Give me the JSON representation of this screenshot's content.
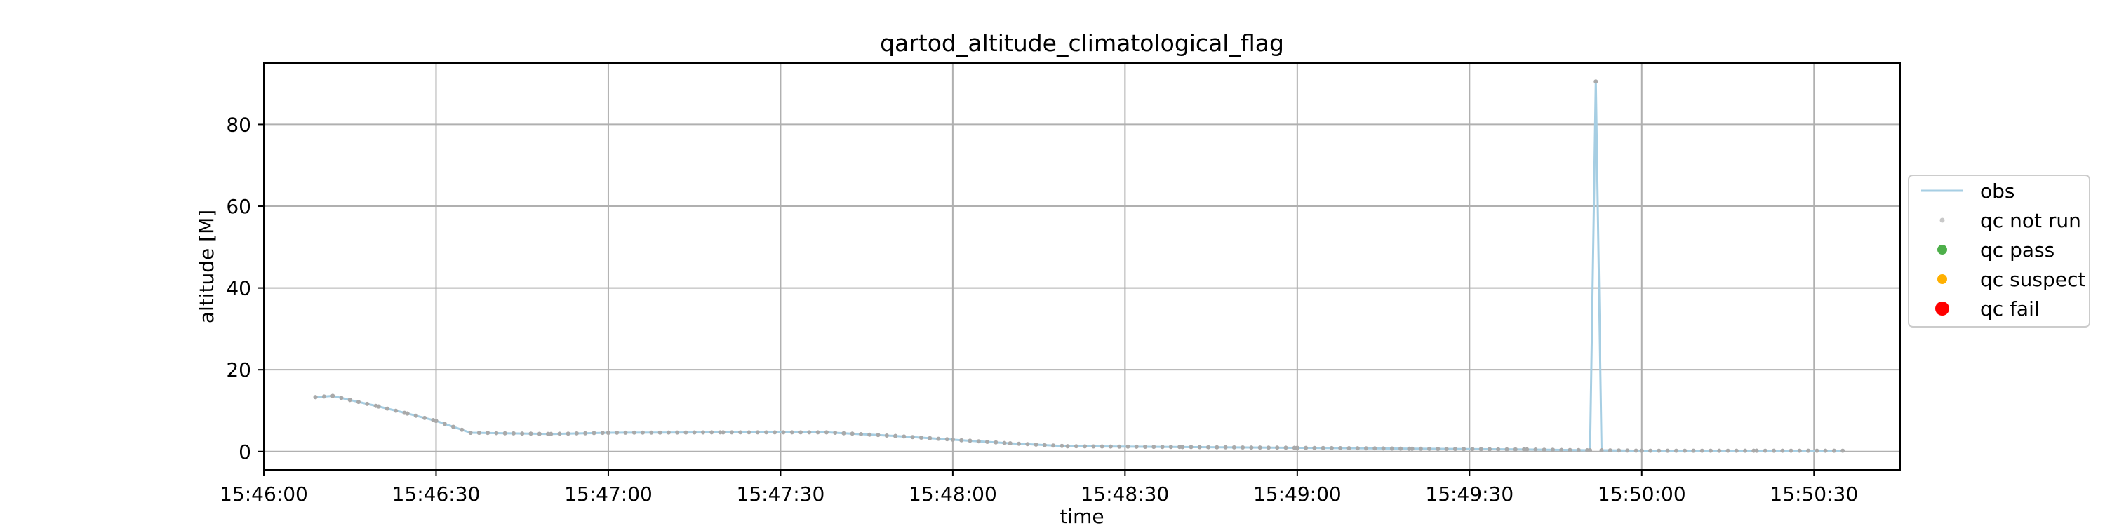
{
  "chart_data": {
    "type": "line",
    "title": "qartod_altitude_climatological_flag",
    "xlabel": "time",
    "ylabel": "altitude [M]",
    "x_axis_type": "time",
    "xlim": [
      "15:46:00",
      "15:50:45"
    ],
    "ylim": [
      -4.5,
      95
    ],
    "x_ticks": [
      "15:46:00",
      "15:46:30",
      "15:47:00",
      "15:47:30",
      "15:48:00",
      "15:48:30",
      "15:49:00",
      "15:49:30",
      "15:50:00",
      "15:50:30"
    ],
    "y_ticks": [
      0,
      20,
      40,
      60,
      80
    ],
    "grid": true,
    "legend_position": "right-outside",
    "colors": {
      "obs": "#a6cee3",
      "qc_not_run": "#a9a9a9",
      "qc_pass": "#4daf4a",
      "qc_suspect": "#ff9f00",
      "qc_fail": "#ff0000",
      "grid": "#b0b0b0"
    },
    "series": [
      {
        "name": "obs",
        "style": "line",
        "points": [
          [
            "15:46:09",
            13.3
          ],
          [
            "15:46:12",
            13.6
          ],
          [
            "15:46:15",
            12.6
          ],
          [
            "15:46:20",
            11.0
          ],
          [
            "15:46:25",
            9.3
          ],
          [
            "15:46:30",
            7.5
          ],
          [
            "15:46:36",
            4.6
          ],
          [
            "15:46:50",
            4.3
          ],
          [
            "15:47:00",
            4.6
          ],
          [
            "15:47:20",
            4.7
          ],
          [
            "15:47:38",
            4.7
          ],
          [
            "15:47:50",
            3.8
          ],
          [
            "15:48:00",
            2.9
          ],
          [
            "15:48:10",
            2.0
          ],
          [
            "15:48:20",
            1.3
          ],
          [
            "15:48:40",
            1.1
          ],
          [
            "15:49:00",
            0.9
          ],
          [
            "15:49:20",
            0.7
          ],
          [
            "15:49:40",
            0.5
          ],
          [
            "15:49:51",
            0.3
          ],
          [
            "15:49:52",
            90.5
          ],
          [
            "15:49:53",
            0.3
          ],
          [
            "15:50:00",
            0.2
          ],
          [
            "15:50:20",
            0.2
          ],
          [
            "15:50:35",
            0.2
          ]
        ]
      },
      {
        "name": "qc not run",
        "style": "marker",
        "points": [
          [
            "15:46:09",
            13.3
          ],
          [
            "15:46:12",
            13.6
          ],
          [
            "15:46:15",
            12.6
          ],
          [
            "15:46:20",
            11.0
          ],
          [
            "15:46:25",
            9.3
          ],
          [
            "15:46:30",
            7.5
          ],
          [
            "15:46:36",
            4.6
          ],
          [
            "15:46:50",
            4.3
          ],
          [
            "15:47:00",
            4.6
          ],
          [
            "15:47:20",
            4.7
          ],
          [
            "15:47:38",
            4.7
          ],
          [
            "15:47:50",
            3.8
          ],
          [
            "15:48:00",
            2.9
          ],
          [
            "15:48:10",
            2.0
          ],
          [
            "15:48:20",
            1.3
          ],
          [
            "15:48:40",
            1.1
          ],
          [
            "15:49:00",
            0.9
          ],
          [
            "15:49:20",
            0.7
          ],
          [
            "15:49:40",
            0.5
          ],
          [
            "15:49:51",
            0.3
          ],
          [
            "15:49:52",
            90.5
          ],
          [
            "15:49:53",
            0.3
          ],
          [
            "15:50:00",
            0.2
          ],
          [
            "15:50:20",
            0.2
          ],
          [
            "15:50:35",
            0.2
          ]
        ]
      },
      {
        "name": "qc pass",
        "style": "marker",
        "points": []
      },
      {
        "name": "qc suspect",
        "style": "marker",
        "points": []
      },
      {
        "name": "qc fail",
        "style": "marker",
        "points": []
      }
    ],
    "legend": [
      {
        "label": "obs",
        "kind": "line",
        "color": "#a6cee3"
      },
      {
        "label": "qc not run",
        "kind": "dot-small",
        "color": "#c8c8c8"
      },
      {
        "label": "qc pass",
        "kind": "dot",
        "color": "#4daf4a"
      },
      {
        "label": "qc suspect",
        "kind": "dot",
        "color": "#ffb000"
      },
      {
        "label": "qc fail",
        "kind": "dot-large",
        "color": "#ff0000"
      }
    ]
  }
}
